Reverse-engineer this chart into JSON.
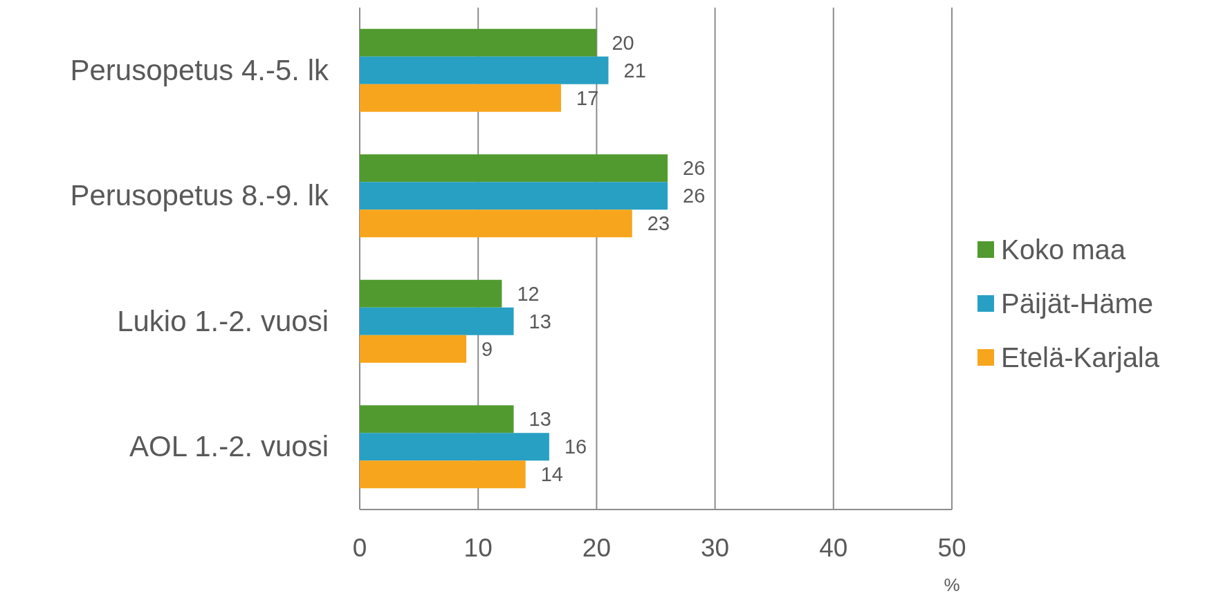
{
  "chart_data": {
    "type": "bar",
    "orientation": "horizontal",
    "categories": [
      "Perusopetus 4.-5. lk",
      "Perusopetus 8.-9. lk",
      "Lukio 1.-2. vuosi",
      "AOL 1.-2. vuosi"
    ],
    "series": [
      {
        "name": "Koko maa",
        "color": "#519a2f",
        "values": [
          20,
          26,
          12,
          13
        ]
      },
      {
        "name": "Päijät-Häme",
        "color": "#27a0c4",
        "values": [
          21,
          26,
          13,
          16
        ]
      },
      {
        "name": "Etelä-Karjala",
        "color": "#f7a51c",
        "values": [
          17,
          23,
          9,
          14
        ]
      }
    ],
    "xlabel": "%",
    "xlim": [
      0,
      50
    ],
    "xticks": [
      0,
      10,
      20,
      30,
      40,
      50
    ],
    "grid": "x",
    "legend": "right",
    "data_labels": true
  }
}
